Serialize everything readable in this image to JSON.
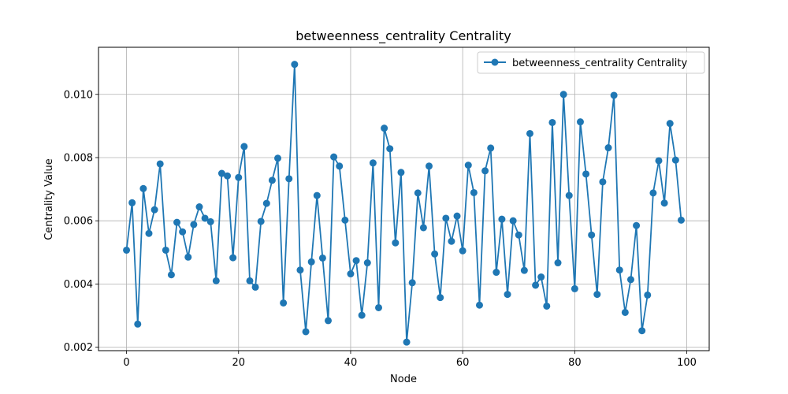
{
  "chart_data": {
    "type": "line",
    "title": "betweenness_centrality Centrality",
    "xlabel": "Node",
    "ylabel": "Centrality Value",
    "xlim": [
      -5,
      104
    ],
    "ylim": [
      0.00189,
      0.01149
    ],
    "xticks": [
      0,
      20,
      40,
      60,
      80,
      100
    ],
    "xtick_labels": [
      "0",
      "20",
      "40",
      "60",
      "80",
      "100"
    ],
    "yticks": [
      0.002,
      0.004,
      0.006,
      0.008,
      0.01
    ],
    "ytick_labels": [
      "0.002",
      "0.004",
      "0.006",
      "0.008",
      "0.010"
    ],
    "grid": true,
    "legend_position": "top-right",
    "series": [
      {
        "name": "betweenness_centrality Centrality",
        "color": "#1f77b4",
        "x": [
          0,
          1,
          2,
          3,
          4,
          5,
          6,
          7,
          8,
          9,
          10,
          11,
          12,
          13,
          14,
          15,
          16,
          17,
          18,
          19,
          20,
          21,
          22,
          23,
          24,
          25,
          26,
          27,
          28,
          29,
          30,
          31,
          32,
          33,
          34,
          35,
          36,
          37,
          38,
          39,
          40,
          41,
          42,
          43,
          44,
          45,
          46,
          47,
          48,
          49,
          50,
          51,
          52,
          53,
          54,
          55,
          56,
          57,
          58,
          59,
          60,
          61,
          62,
          63,
          64,
          65,
          66,
          67,
          68,
          69,
          70,
          71,
          72,
          73,
          74,
          75,
          76,
          77,
          78,
          79,
          80,
          81,
          82,
          83,
          84,
          85,
          86,
          87,
          88,
          89,
          90,
          91,
          92,
          93,
          94,
          95,
          96,
          97,
          98,
          99
        ],
        "values": [
          0.00507,
          0.00657,
          0.00273,
          0.00702,
          0.0056,
          0.00635,
          0.0078,
          0.00507,
          0.00429,
          0.00595,
          0.00565,
          0.00485,
          0.00588,
          0.00644,
          0.00608,
          0.00597,
          0.0041,
          0.0075,
          0.00742,
          0.00483,
          0.00737,
          0.00835,
          0.0041,
          0.0039,
          0.00598,
          0.00655,
          0.00728,
          0.00798,
          0.0034,
          0.00733,
          0.01095,
          0.00444,
          0.00249,
          0.0047,
          0.0068,
          0.00482,
          0.00284,
          0.00802,
          0.00773,
          0.00602,
          0.00432,
          0.00474,
          0.00301,
          0.00467,
          0.00783,
          0.00325,
          0.00893,
          0.00828,
          0.0053,
          0.00753,
          0.00216,
          0.00404,
          0.00688,
          0.00578,
          0.00773,
          0.00495,
          0.00357,
          0.00608,
          0.00535,
          0.00615,
          0.00505,
          0.00776,
          0.00689,
          0.00333,
          0.00758,
          0.0083,
          0.00437,
          0.00605,
          0.00367,
          0.006,
          0.00555,
          0.00443,
          0.00876,
          0.00396,
          0.00422,
          0.0033,
          0.00911,
          0.00467,
          0.01,
          0.0068,
          0.00385,
          0.00913,
          0.00748,
          0.00555,
          0.00367,
          0.00723,
          0.00831,
          0.00997,
          0.00444,
          0.0031,
          0.00414,
          0.00585,
          0.00252,
          0.00365,
          0.00688,
          0.0079,
          0.00656,
          0.00908,
          0.00792,
          0.00602
        ]
      }
    ]
  }
}
